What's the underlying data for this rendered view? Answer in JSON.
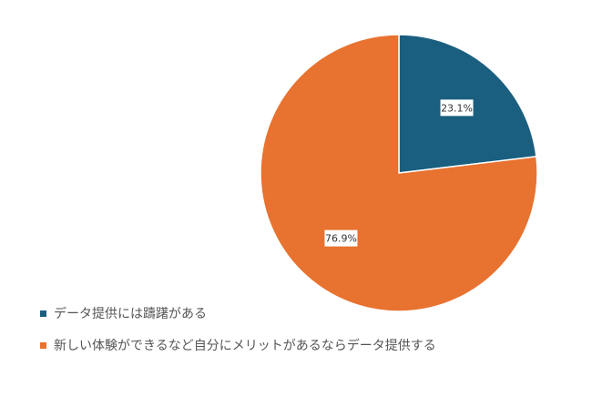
{
  "chart_data": {
    "type": "pie",
    "title": "",
    "start_angle_deg": 0,
    "direction": "clockwise",
    "slices": [
      {
        "label": "データ提供には躊躇がある",
        "value": 23.1,
        "display": "23.1%",
        "color": "#1a5f7f"
      },
      {
        "label": "新しい体験ができるなど自分にメリットがあるならデータ提供する",
        "value": 76.9,
        "display": "76.9%",
        "color": "#e8722f"
      }
    ],
    "legend_position": "bottom-left"
  }
}
